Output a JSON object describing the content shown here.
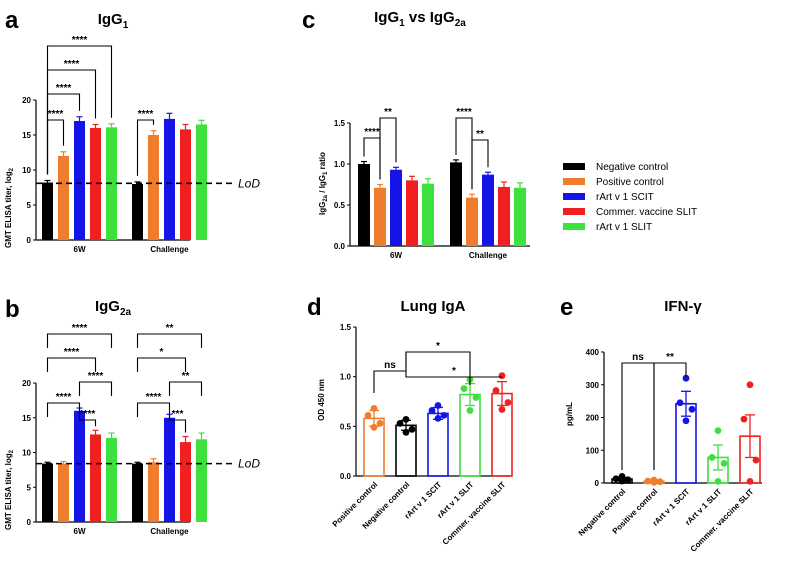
{
  "legend": {
    "entries": [
      {
        "label": "Negative control",
        "color": "#000000"
      },
      {
        "label": "Positive control",
        "color": "#f07c2e"
      },
      {
        "label": "rArt v 1 SCIT",
        "color": "#1414e6"
      },
      {
        "label": "Commer. vaccine SLIT",
        "color": "#f02020"
      },
      {
        "label": "rArt v 1 SLIT",
        "color": "#3ee03e"
      }
    ]
  },
  "chart_data": [
    {
      "id": "a",
      "panel_label": "a",
      "title_main": "IgG",
      "title_sub": "1",
      "type": "bar",
      "ylabel_main": "GMT ELISA titer, log",
      "ylabel_sub": "2",
      "ylim": [
        0,
        20
      ],
      "yticks": [
        0,
        5,
        10,
        15,
        20
      ],
      "categories": [
        "6W",
        "Challenge"
      ],
      "series": [
        {
          "name": "Negative control",
          "color": "#000000",
          "values": [
            8.2,
            8.0
          ],
          "errors": [
            0.3,
            0.3
          ]
        },
        {
          "name": "Positive control",
          "color": "#f07c2e",
          "values": [
            12.0,
            15.0
          ],
          "errors": [
            0.6,
            0.6
          ]
        },
        {
          "name": "rArt v 1 SCIT",
          "color": "#1414e6",
          "values": [
            17.0,
            17.3
          ],
          "errors": [
            0.6,
            0.8
          ]
        },
        {
          "name": "Commer. vaccine SLIT",
          "color": "#f02020",
          "values": [
            16.0,
            15.8
          ],
          "errors": [
            0.5,
            0.7
          ]
        },
        {
          "name": "rArt v 1 SLIT",
          "color": "#3ee03e",
          "values": [
            16.1,
            16.5
          ],
          "errors": [
            0.5,
            0.6
          ]
        }
      ],
      "lod": {
        "value": 8.1,
        "label": "LoD"
      },
      "significance": [
        {
          "group": 0,
          "from": 0,
          "to": 1,
          "label": "****"
        },
        {
          "group": 0,
          "from": 0,
          "to": 2,
          "label": "****"
        },
        {
          "group": 0,
          "from": 0,
          "to": 3,
          "label": "****"
        },
        {
          "group": 0,
          "from": 0,
          "to": 4,
          "label": "****"
        },
        {
          "group": 1,
          "from": 0,
          "to": 1,
          "label": "****"
        }
      ]
    },
    {
      "id": "b",
      "panel_label": "b",
      "title_main": "IgG",
      "title_sub": "2a",
      "type": "bar",
      "ylabel_main": "GMT ELISA titer, log",
      "ylabel_sub": "2",
      "ylim": [
        0,
        20
      ],
      "yticks": [
        0,
        5,
        10,
        15,
        20
      ],
      "categories": [
        "6W",
        "Challenge"
      ],
      "series": [
        {
          "name": "Negative control",
          "color": "#000000",
          "values": [
            8.4,
            8.4
          ],
          "errors": [
            0.2,
            0.2
          ]
        },
        {
          "name": "Positive control",
          "color": "#f07c2e",
          "values": [
            8.4,
            8.6
          ],
          "errors": [
            0.3,
            0.5
          ]
        },
        {
          "name": "rArt v 1 SCIT",
          "color": "#1414e6",
          "values": [
            16.0,
            15.0
          ],
          "errors": [
            0.4,
            0.5
          ]
        },
        {
          "name": "Commer. vaccine SLIT",
          "color": "#f02020",
          "values": [
            12.6,
            11.5
          ],
          "errors": [
            0.6,
            0.8
          ]
        },
        {
          "name": "rArt v 1 SLIT",
          "color": "#3ee03e",
          "values": [
            12.1,
            11.9
          ],
          "errors": [
            0.7,
            0.9
          ]
        }
      ],
      "lod": {
        "value": 8.4,
        "label": "LoD"
      },
      "significance": [
        {
          "group": 0,
          "from": 2,
          "to": 3,
          "label": "****"
        },
        {
          "group": 0,
          "from": 0,
          "to": 2,
          "label": "****"
        },
        {
          "group": 0,
          "from": 2,
          "to": 4,
          "label": "****"
        },
        {
          "group": 0,
          "from": 0,
          "to": 3,
          "label": "****"
        },
        {
          "group": 0,
          "from": 0,
          "to": 4,
          "label": "****"
        },
        {
          "group": 1,
          "from": 2,
          "to": 3,
          "label": "***"
        },
        {
          "group": 1,
          "from": 0,
          "to": 2,
          "label": "****"
        },
        {
          "group": 1,
          "from": 2,
          "to": 4,
          "label": "**"
        },
        {
          "group": 1,
          "from": 0,
          "to": 3,
          "label": "*"
        },
        {
          "group": 1,
          "from": 0,
          "to": 4,
          "label": "**"
        }
      ]
    },
    {
      "id": "c",
      "panel_label": "c",
      "title_main": "IgG",
      "title_sub": "1",
      "title_mid": " vs IgG",
      "title_sub2": "2a",
      "type": "bar",
      "ylabel_a": "IgG",
      "ylabel_a_sub": "2a",
      "ylabel_b": " / IgG",
      "ylabel_b_sub": "1",
      "ylabel_c": " ratio",
      "ylim": [
        0,
        1.5
      ],
      "yticks": [
        0.0,
        0.5,
        1.0,
        1.5
      ],
      "ytick_labels": [
        "0.0",
        "0.5",
        "1.0",
        "1.5"
      ],
      "categories": [
        "6W",
        "Challenge"
      ],
      "series": [
        {
          "name": "Negative control",
          "color": "#000000",
          "values": [
            1.0,
            1.02
          ],
          "errors": [
            0.03,
            0.03
          ]
        },
        {
          "name": "Positive control",
          "color": "#f07c2e",
          "values": [
            0.71,
            0.59
          ],
          "errors": [
            0.04,
            0.04
          ]
        },
        {
          "name": "rArt v 1 SCIT",
          "color": "#1414e6",
          "values": [
            0.93,
            0.87
          ],
          "errors": [
            0.03,
            0.03
          ]
        },
        {
          "name": "Commer. vaccine SLIT",
          "color": "#f02020",
          "values": [
            0.8,
            0.72
          ],
          "errors": [
            0.05,
            0.06
          ]
        },
        {
          "name": "rArt v 1 SLIT",
          "color": "#3ee03e",
          "values": [
            0.76,
            0.71
          ],
          "errors": [
            0.06,
            0.06
          ]
        }
      ],
      "significance": [
        {
          "group": 0,
          "from": 0,
          "to": 1,
          "label": "****"
        },
        {
          "group": 0,
          "from": 1,
          "to": 2,
          "label": "**"
        },
        {
          "group": 1,
          "from": 1,
          "to": 2,
          "label": "**"
        },
        {
          "group": 1,
          "from": 0,
          "to": 1,
          "label": "****"
        }
      ]
    },
    {
      "id": "d",
      "panel_label": "d",
      "title_main": "Lung IgA",
      "type": "bar",
      "ylabel": "OD 450 nm",
      "ylim": [
        0,
        1.5
      ],
      "yticks": [
        0.0,
        0.5,
        1.0,
        1.5
      ],
      "ytick_labels": [
        "0.0",
        "0.5",
        "1.0",
        "1.5"
      ],
      "categories": [
        "Positive control",
        "Negative control",
        "rArt v 1 SCIT",
        "rArt v 1 SLIT",
        "Commer. vaccine SLIT"
      ],
      "colors": [
        "#f07c2e",
        "#000000",
        "#1414e6",
        "#3ee03e",
        "#f02020"
      ],
      "values": [
        0.58,
        0.51,
        0.63,
        0.82,
        0.83
      ],
      "errors": [
        0.08,
        0.05,
        0.06,
        0.11,
        0.12
      ],
      "points": [
        [
          0.68,
          0.61,
          0.53,
          0.49
        ],
        [
          0.57,
          0.53,
          0.47,
          0.44
        ],
        [
          0.71,
          0.66,
          0.61,
          0.58
        ],
        [
          0.97,
          0.88,
          0.79,
          0.66
        ],
        [
          1.01,
          0.86,
          0.74,
          0.67
        ]
      ],
      "significance": [
        {
          "from": 0,
          "to": 1,
          "label": "ns"
        },
        {
          "from": 1,
          "to": 3,
          "label": "*"
        },
        {
          "from": 1,
          "to": 4,
          "label": "*"
        }
      ]
    },
    {
      "id": "e",
      "panel_label": "e",
      "title_main": "IFN-γ",
      "type": "bar",
      "ylabel": "pg/mL",
      "ylim": [
        0,
        400
      ],
      "yticks": [
        0,
        100,
        200,
        300,
        400
      ],
      "ytick_labels": [
        "0",
        "100",
        "200",
        "300",
        "400"
      ],
      "categories": [
        "Negative control",
        "Positive control",
        "rArt v 1 SCIT",
        "rArt v 1 SLIT",
        "Commer. vaccine SLIT"
      ],
      "colors": [
        "#000000",
        "#f07c2e",
        "#1414e6",
        "#3ee03e",
        "#f02020"
      ],
      "values": [
        12,
        5,
        242,
        78,
        143
      ],
      "errors": [
        5,
        2,
        38,
        38,
        65
      ],
      "points": [
        [
          20,
          13,
          10,
          6
        ],
        [
          9,
          6,
          4,
          2
        ],
        [
          320,
          245,
          225,
          190
        ],
        [
          160,
          78,
          60,
          5
        ],
        [
          300,
          195,
          70,
          5
        ]
      ],
      "significance": [
        {
          "from": 0,
          "to": 1,
          "label": "ns"
        },
        {
          "from": 1,
          "to": 2,
          "label": "**"
        }
      ]
    }
  ]
}
